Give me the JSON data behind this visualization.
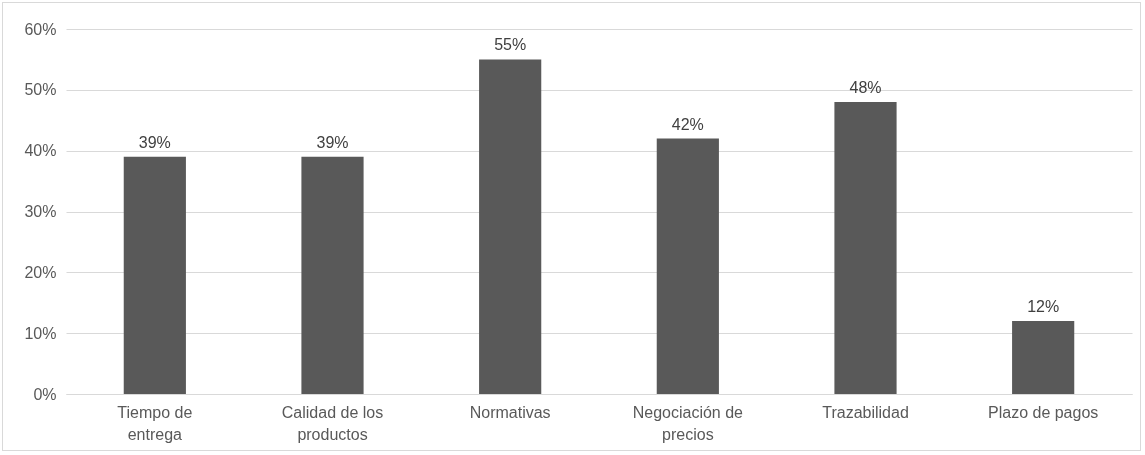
{
  "chart_data": {
    "type": "bar",
    "categories": [
      "Tiempo de entrega",
      "Calidad de los productos",
      "Normativas",
      "Negociación de precios",
      "Trazabilidad",
      "Plazo de pagos"
    ],
    "values": [
      39,
      39,
      55,
      42,
      48,
      12
    ],
    "value_labels": [
      "39%",
      "39%",
      "55%",
      "42%",
      "48%",
      "12%"
    ],
    "color": "#595959",
    "ylim": [
      0,
      60
    ],
    "yticks": [
      {
        "value": 0,
        "label": "0%"
      },
      {
        "value": 10,
        "label": "10%"
      },
      {
        "value": 20,
        "label": "20%"
      },
      {
        "value": 30,
        "label": "30%"
      },
      {
        "value": 40,
        "label": "40%"
      },
      {
        "value": 50,
        "label": "50%"
      },
      {
        "value": 60,
        "label": "60%"
      }
    ],
    "grid": "y"
  }
}
